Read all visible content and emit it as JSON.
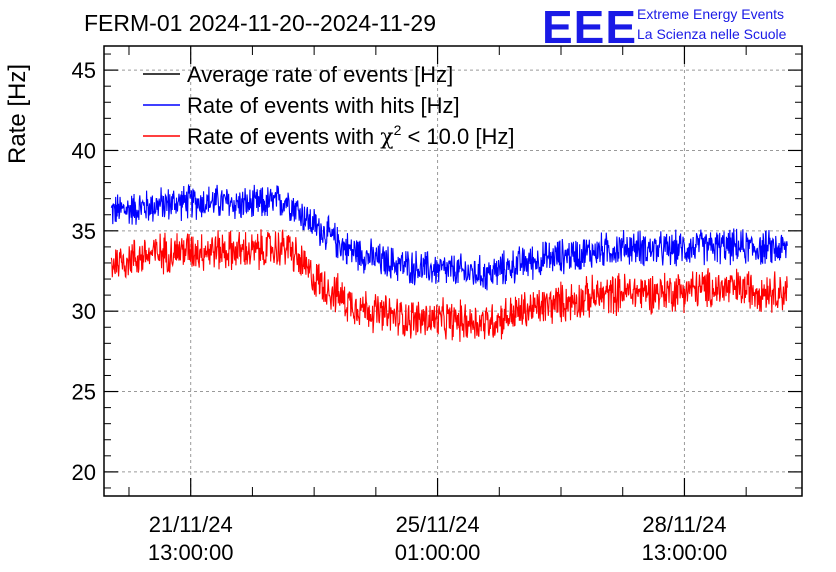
{
  "header": {
    "title": "FERM-01 2024-11-20--2024-11-29",
    "logo_text": "EEE",
    "logo_line1": "Extreme Energy Events",
    "logo_line2": "La Scienza nelle Scuole"
  },
  "colors": {
    "black": "#000000",
    "blue": "#0000ff",
    "red": "#ff0000",
    "logo": "#1a1ae6",
    "grid": "#9a9a9a"
  },
  "chart_data": {
    "type": "line",
    "title": "FERM-01 2024-11-20--2024-11-29",
    "ylabel": "Rate [Hz]",
    "xlabel": "",
    "ylim": [
      18.5,
      46.5
    ],
    "xlim": [
      "2024-11-20 07:30",
      "2024-11-30 05:00"
    ],
    "grid": true,
    "legend_position": "top-left",
    "y_ticks": [
      20,
      25,
      30,
      35,
      40,
      45
    ],
    "x_ticks": [
      {
        "x": "2024-11-21 13:00",
        "label": [
          "21/11/24",
          "13:00:00"
        ]
      },
      {
        "x": "2024-11-25 01:00",
        "label": [
          "25/11/24",
          "01:00:00"
        ]
      },
      {
        "x": "2024-11-28 13:00",
        "label": [
          "28/11/24",
          "13:00:00"
        ]
      }
    ],
    "legend": [
      {
        "label": "Average rate of events [Hz]",
        "color": "#000000"
      },
      {
        "label": "Rate of events with hits [Hz]",
        "color": "#0000ff"
      },
      {
        "label_parts": [
          "Rate of events with ",
          "χ",
          "2",
          " < 10.0 [Hz]"
        ],
        "color": "#ff0000"
      }
    ],
    "series": [
      {
        "name": "Rate of events with hits [Hz]",
        "color": "#0000ff",
        "x": [
          "2024-11-20 10:00",
          "2024-11-20 22:00",
          "2024-11-21 10:00",
          "2024-11-21 22:00",
          "2024-11-22 10:00",
          "2024-11-22 22:00",
          "2024-11-23 06:00",
          "2024-11-23 18:00",
          "2024-11-24 06:00",
          "2024-11-24 18:00",
          "2024-11-25 06:00",
          "2024-11-25 18:00",
          "2024-11-26 06:00",
          "2024-11-26 18:00",
          "2024-11-27 06:00",
          "2024-11-27 18:00",
          "2024-11-28 06:00",
          "2024-11-28 18:00",
          "2024-11-29 06:00",
          "2024-11-29 18:00",
          "2024-11-30 00:00"
        ],
        "mean": [
          36.2,
          36.5,
          36.8,
          36.8,
          36.6,
          36.9,
          35.5,
          33.9,
          33.1,
          32.7,
          32.5,
          32.3,
          33.0,
          33.4,
          33.7,
          34.0,
          33.8,
          34.0,
          34.0,
          33.9,
          33.9
        ],
        "spread": 1.3
      },
      {
        "name": "Rate of events with χ2 < 10.0 [Hz]",
        "color": "#ff0000",
        "x": [
          "2024-11-20 10:00",
          "2024-11-20 22:00",
          "2024-11-21 10:00",
          "2024-11-21 22:00",
          "2024-11-22 10:00",
          "2024-11-22 22:00",
          "2024-11-23 06:00",
          "2024-11-23 18:00",
          "2024-11-24 06:00",
          "2024-11-24 18:00",
          "2024-11-25 06:00",
          "2024-11-25 18:00",
          "2024-11-26 06:00",
          "2024-11-26 18:00",
          "2024-11-27 06:00",
          "2024-11-27 18:00",
          "2024-11-28 06:00",
          "2024-11-28 18:00",
          "2024-11-29 06:00",
          "2024-11-29 18:00",
          "2024-11-30 00:00"
        ],
        "mean": [
          33.0,
          33.5,
          33.8,
          33.8,
          33.7,
          34.0,
          32.2,
          30.6,
          29.8,
          29.5,
          29.4,
          29.3,
          30.0,
          30.5,
          30.9,
          31.2,
          31.2,
          31.4,
          31.4,
          31.3,
          31.2
        ],
        "spread": 1.5
      }
    ]
  }
}
